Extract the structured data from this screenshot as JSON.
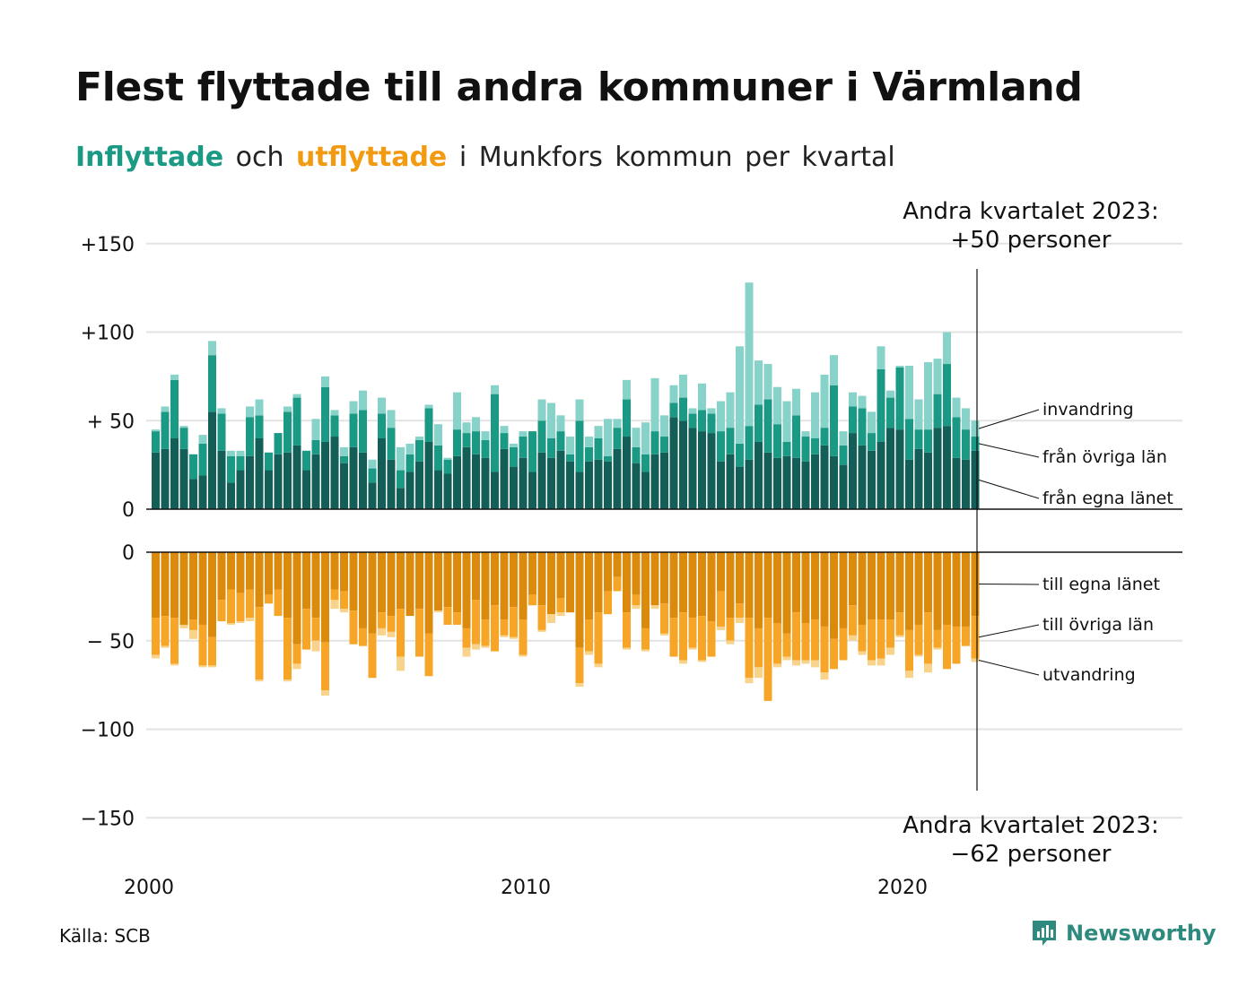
{
  "title": "Flest flyttade till andra kommuner i Värmland",
  "subtitle": {
    "in_word": "Inflyttade",
    "and_word": "och",
    "out_word": "utflyttade",
    "rest": "i Munkfors kommun per kvartal"
  },
  "source": "Källa: SCB",
  "logo": {
    "name": "Newsworthy",
    "icon": "newsworthy-logo-icon"
  },
  "colors": {
    "in_own": "#135f57",
    "in_other": "#1a9985",
    "in_abroad": "#88d3c9",
    "out_own": "#db8a0c",
    "out_other": "#f7a527",
    "out_abroad": "#f8d38b",
    "grid": "#e3e3e3",
    "axis": "#111111"
  },
  "annotations": {
    "top": {
      "line1": "Andra kvartalet 2023:",
      "line2": "+50 personer"
    },
    "bottom": {
      "line1": "Andra kvartalet 2023:",
      "line2": "−62 personer"
    }
  },
  "chart_data": {
    "type": "bar",
    "stacked": true,
    "period": "quarterly 2000 Q1 – 2023 Q2",
    "x_ticks": [
      "2000",
      "2010",
      "2020"
    ],
    "y_ticks_top": [
      "+150",
      "+100",
      "+ 50",
      "0"
    ],
    "y_ticks_bottom": [
      "0",
      "− 50",
      "−100",
      "−150"
    ],
    "ylim_top": [
      0,
      150
    ],
    "ylim_bottom": [
      -150,
      0
    ],
    "series_labels_in": [
      "invandring",
      "från övriga län",
      "från egna länet"
    ],
    "series_labels_out": [
      "till egna länet",
      "till övriga län",
      "utvandring"
    ],
    "inflow": {
      "own": [
        32,
        34,
        40,
        34,
        17,
        19,
        55,
        33,
        15,
        22,
        30,
        40,
        22,
        31,
        32,
        36,
        22,
        31,
        38,
        41,
        26,
        35,
        32,
        15,
        40,
        28,
        12,
        21,
        27,
        38,
        22,
        20,
        30,
        35,
        31,
        29,
        21,
        34,
        24,
        29,
        21,
        32,
        29,
        33,
        27,
        21,
        27,
        28,
        27,
        34,
        41,
        26,
        21,
        31,
        32,
        52,
        50,
        46,
        44,
        43,
        27,
        31,
        24,
        28,
        38,
        32,
        29,
        30,
        29,
        27,
        31,
        36,
        30,
        25,
        43,
        36,
        33,
        38,
        46,
        45,
        28,
        34,
        32,
        46,
        47,
        29,
        28,
        33
      ],
      "other": [
        12,
        21,
        33,
        12,
        14,
        18,
        32,
        21,
        15,
        8,
        22,
        13,
        10,
        12,
        23,
        27,
        11,
        8,
        31,
        12,
        4,
        19,
        24,
        8,
        14,
        18,
        10,
        10,
        12,
        19,
        14,
        8,
        15,
        8,
        13,
        10,
        44,
        9,
        11,
        12,
        23,
        18,
        11,
        11,
        4,
        29,
        8,
        12,
        3,
        12,
        21,
        9,
        10,
        13,
        9,
        8,
        13,
        8,
        12,
        11,
        17,
        15,
        13,
        19,
        21,
        30,
        19,
        8,
        24,
        14,
        9,
        10,
        40,
        11,
        15,
        21,
        10,
        41,
        17,
        35,
        23,
        11,
        13,
        19,
        35,
        23,
        17,
        8
      ],
      "abroad": [
        1,
        3,
        3,
        1,
        0,
        5,
        8,
        3,
        3,
        3,
        6,
        9,
        0,
        0,
        3,
        2,
        0,
        12,
        6,
        3,
        5,
        7,
        11,
        5,
        9,
        10,
        13,
        6,
        2,
        2,
        12,
        1,
        21,
        6,
        8,
        5,
        5,
        4,
        2,
        3,
        0,
        12,
        20,
        9,
        10,
        12,
        6,
        7,
        21,
        5,
        11,
        11,
        18,
        30,
        12,
        10,
        13,
        3,
        15,
        3,
        17,
        20,
        55,
        81,
        25,
        20,
        21,
        23,
        15,
        3,
        26,
        30,
        17,
        8,
        8,
        7,
        12,
        13,
        4,
        1,
        30,
        17,
        38,
        20,
        18,
        11,
        12,
        9
      ]
    },
    "outflow": {
      "own": [
        37,
        36,
        37,
        41,
        38,
        41,
        48,
        27,
        21,
        23,
        21,
        31,
        24,
        21,
        37,
        52,
        32,
        37,
        51,
        21,
        22,
        33,
        43,
        46,
        34,
        36,
        32,
        36,
        32,
        46,
        33,
        31,
        34,
        43,
        27,
        38,
        30,
        38,
        31,
        38,
        24,
        30,
        35,
        26,
        34,
        54,
        38,
        34,
        22,
        14,
        34,
        24,
        43,
        30,
        29,
        37,
        34,
        37,
        36,
        39,
        22,
        37,
        29,
        37,
        43,
        37,
        40,
        46,
        34,
        40,
        38,
        42,
        49,
        43,
        30,
        41,
        38,
        38,
        38,
        34,
        44,
        41,
        34,
        44,
        41,
        42,
        42,
        36
      ],
      "other": [
        21,
        17,
        26,
        0,
        6,
        23,
        16,
        12,
        19,
        16,
        16,
        41,
        5,
        15,
        35,
        11,
        23,
        13,
        27,
        6,
        10,
        19,
        10,
        25,
        9,
        9,
        27,
        0,
        27,
        24,
        0,
        10,
        7,
        11,
        25,
        15,
        26,
        9,
        17,
        20,
        6,
        14,
        0,
        8,
        0,
        20,
        18,
        29,
        13,
        8,
        20,
        6,
        12,
        0,
        17,
        22,
        27,
        17,
        25,
        20,
        20,
        13,
        8,
        34,
        22,
        47,
        23,
        13,
        27,
        21,
        23,
        26,
        17,
        18,
        17,
        15,
        23,
        22,
        16,
        13,
        23,
        17,
        29,
        10,
        25,
        21,
        11,
        24
      ],
      "abroad": [
        2,
        1,
        1,
        2,
        5,
        1,
        1,
        0,
        1,
        1,
        2,
        1,
        0,
        0,
        1,
        3,
        0,
        6,
        3,
        5,
        2,
        0,
        0,
        0,
        4,
        3,
        8,
        0,
        0,
        0,
        1,
        0,
        0,
        5,
        3,
        1,
        0,
        1,
        1,
        1,
        0,
        1,
        5,
        2,
        0,
        2,
        2,
        2,
        0,
        0,
        1,
        2,
        1,
        2,
        1,
        0,
        2,
        1,
        1,
        0,
        2,
        2,
        3,
        3,
        6,
        0,
        2,
        2,
        3,
        2,
        4,
        4,
        0,
        0,
        3,
        2,
        3,
        4,
        4,
        1,
        4,
        1,
        5,
        1,
        0,
        0,
        0,
        2
      ]
    }
  }
}
